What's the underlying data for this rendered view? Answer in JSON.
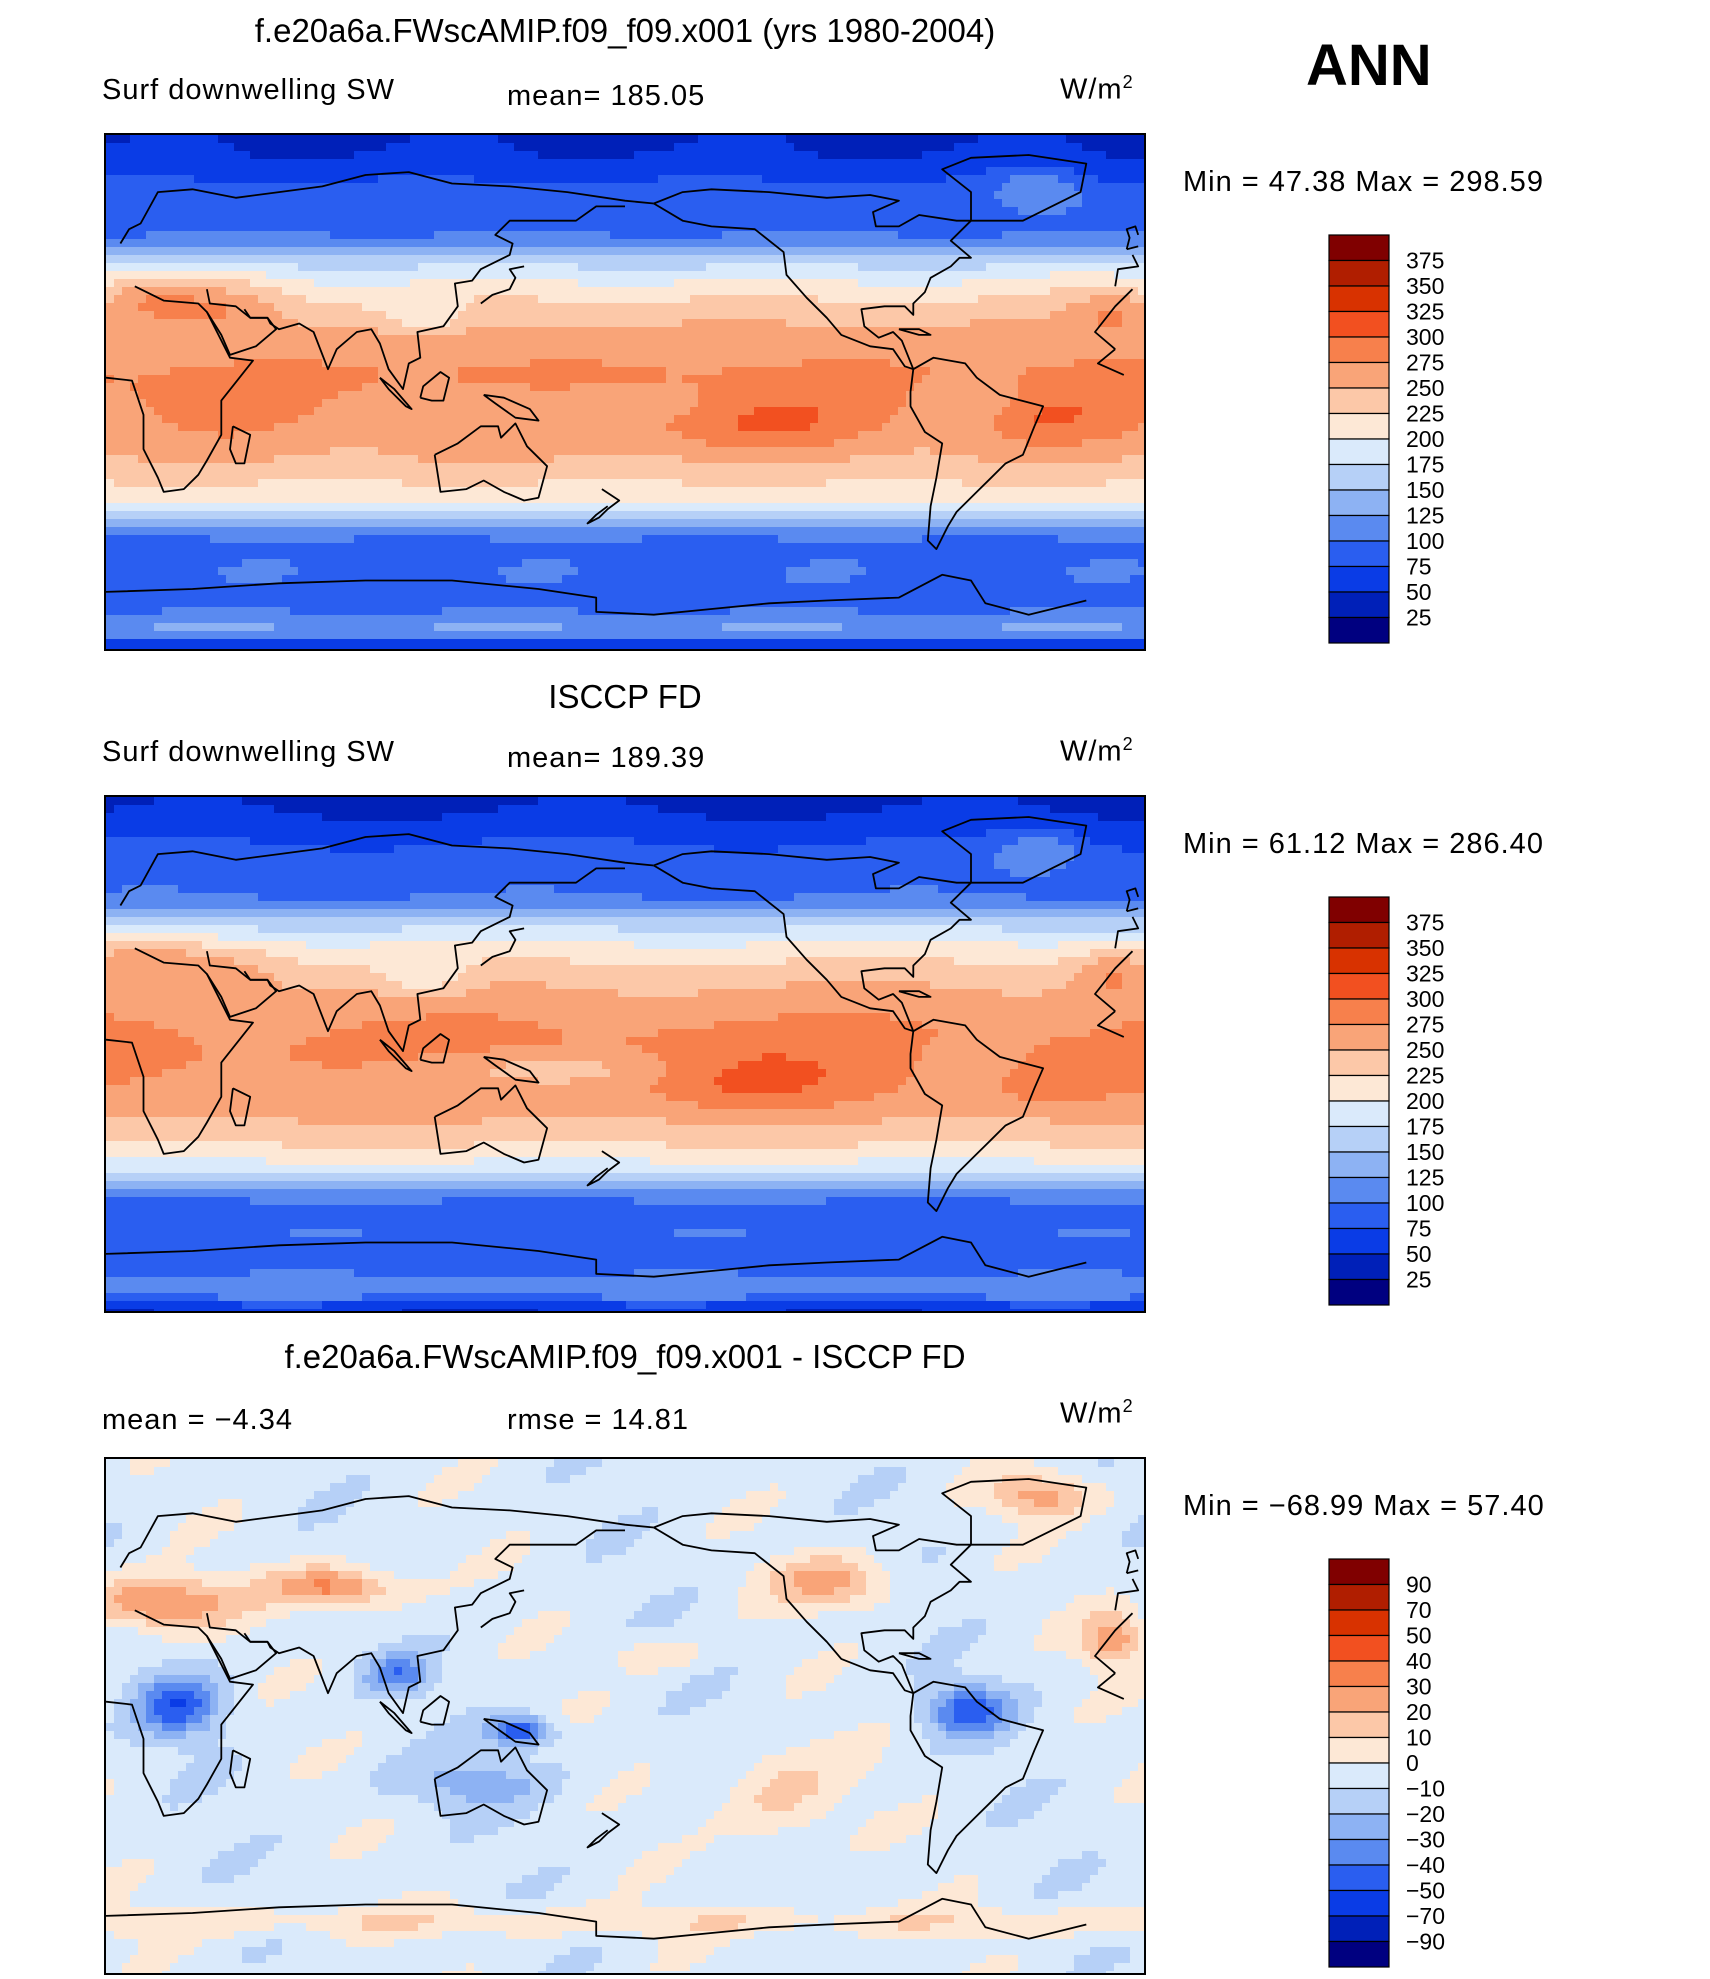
{
  "season": "ANN",
  "panels": [
    {
      "title": "f.e20a6a.FWscAMIP.f09_f09.x001 (yrs 1980-2004)",
      "left_label": "Surf downwelling SW",
      "mid_label": "mean=  185.05",
      "units": "W/m",
      "units_sup": "2",
      "minmax": "Min  =    47.38  Max  =  298.59",
      "kind": "abs"
    },
    {
      "title": "ISCCP FD",
      "left_label": "Surf downwelling SW",
      "mid_label": "mean=  189.39",
      "units": "W/m",
      "units_sup": "2",
      "minmax": "Min  =    61.12  Max  =  286.40",
      "kind": "abs"
    },
    {
      "title": "f.e20a6a.FWscAMIP.f09_f09.x001 - ISCCP FD",
      "left_label": "mean  =    −4.34",
      "mid_label": "rmse  =    14.81",
      "units": "W/m",
      "units_sup": "2",
      "minmax": "Min  = −68.99  Max  =    57.40",
      "kind": "diff"
    }
  ],
  "colorbars": {
    "abs": {
      "labels": [
        "375",
        "350",
        "325",
        "300",
        "275",
        "250",
        "225",
        "200",
        "175",
        "150",
        "125",
        "100",
        "75",
        "50",
        "25"
      ],
      "colors": [
        "#800000",
        "#b01e00",
        "#d83200",
        "#f25020",
        "#f7804c",
        "#f9a478",
        "#fcc8a8",
        "#fde8d6",
        "#daeafb",
        "#b6d0f7",
        "#8db2f3",
        "#5a8af0",
        "#2a5ef0",
        "#0a3ce6",
        "#0020b8",
        "#000080"
      ]
    },
    "diff": {
      "labels": [
        "90",
        "70",
        "50",
        "40",
        "30",
        "20",
        "10",
        "0",
        "−10",
        "−20",
        "−30",
        "−40",
        "−50",
        "−70",
        "−90"
      ],
      "colors": [
        "#800000",
        "#b01e00",
        "#d83200",
        "#f25020",
        "#f7804c",
        "#f9a478",
        "#fcc8a8",
        "#fde8d6",
        "#daeafb",
        "#b6d0f7",
        "#8db2f3",
        "#5a8af0",
        "#2a5ef0",
        "#0a3ce6",
        "#0020b8",
        "#000080"
      ]
    }
  },
  "chart_data": [
    {
      "type": "heatmap",
      "title": "f.e20a6a.FWscAMIP.f09_f09.x001 (yrs 1980-2004)",
      "variable": "Surf downwelling SW",
      "units": "W/m2",
      "mean": 185.05,
      "min": 47.38,
      "max": 298.59,
      "contour_levels": [
        25,
        50,
        75,
        100,
        125,
        150,
        175,
        200,
        225,
        250,
        275,
        300,
        325,
        350,
        375
      ],
      "grid": false
    },
    {
      "type": "heatmap",
      "title": "ISCCP FD",
      "variable": "Surf downwelling SW",
      "units": "W/m2",
      "mean": 189.39,
      "min": 61.12,
      "max": 286.4,
      "contour_levels": [
        25,
        50,
        75,
        100,
        125,
        150,
        175,
        200,
        225,
        250,
        275,
        300,
        325,
        350,
        375
      ],
      "grid": false
    },
    {
      "type": "heatmap",
      "title": "f.e20a6a.FWscAMIP.f09_f09.x001 - ISCCP FD",
      "units": "W/m2",
      "mean": -4.34,
      "rmse": 14.81,
      "min": -68.99,
      "max": 57.4,
      "contour_levels": [
        -90,
        -70,
        -50,
        -40,
        -30,
        -20,
        -10,
        0,
        10,
        20,
        30,
        40,
        50,
        70,
        90
      ],
      "grid": false
    }
  ]
}
